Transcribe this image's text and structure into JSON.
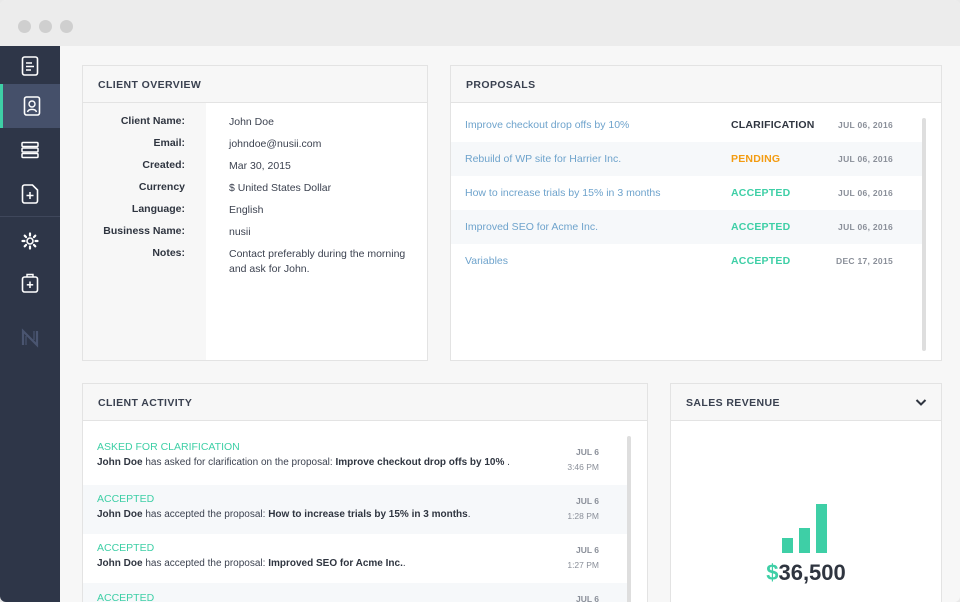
{
  "sidebar": {
    "items": [
      {
        "name": "document-icon"
      },
      {
        "name": "client-icon",
        "active": true
      },
      {
        "name": "list-icon"
      },
      {
        "name": "new-document-icon"
      },
      {
        "name": "gear-icon"
      },
      {
        "name": "add-package-icon"
      },
      {
        "name": "logo-icon"
      }
    ]
  },
  "client_overview": {
    "title": "CLIENT OVERVIEW",
    "fields": [
      {
        "label": "Client Name:",
        "value": "John Doe"
      },
      {
        "label": "Email:",
        "value": "johndoe@nusii.com"
      },
      {
        "label": "Created:",
        "value": "Mar 30, 2015"
      },
      {
        "label": "Currency",
        "value": "$ United States Dollar"
      },
      {
        "label": "Language:",
        "value": "English"
      },
      {
        "label": "Business Name:",
        "value": "nusii"
      },
      {
        "label": "Notes:",
        "value": "Contact preferably during the morning and ask for John."
      }
    ]
  },
  "proposals": {
    "title": "PROPOSALS",
    "rows": [
      {
        "name": "Improve checkout drop offs by 10%",
        "status": "CLARIFICATION",
        "status_color": "#2f3540",
        "date": "JUL 06, 2016"
      },
      {
        "name": "Rebuild of WP site for Harrier Inc.",
        "status": "PENDING",
        "status_color": "#f39c12",
        "date": "JUL 06, 2016"
      },
      {
        "name": "How to increase trials by 15% in 3 months",
        "status": "ACCEPTED",
        "status_color": "#3ecfa6",
        "date": "JUL 06, 2016"
      },
      {
        "name": "Improved SEO for Acme Inc.",
        "status": "ACCEPTED",
        "status_color": "#3ecfa6",
        "date": "JUL 06, 2016"
      },
      {
        "name": "Variables",
        "status": "ACCEPTED",
        "status_color": "#3ecfa6",
        "date": "DEC 17, 2015"
      }
    ]
  },
  "client_activity": {
    "title": "CLIENT ACTIVITY",
    "rows": [
      {
        "type": "ASKED FOR CLARIFICATION",
        "actor": "John Doe",
        "text": " has asked for clarification on the proposal: ",
        "proposal": "Improve checkout drop offs by 10%",
        "suffix": " .",
        "date": "JUL 6",
        "time": "3:46 PM"
      },
      {
        "type": "ACCEPTED",
        "actor": "John Doe",
        "text": " has accepted the proposal: ",
        "proposal": "How to increase trials by 15% in 3 months",
        "suffix": ".",
        "date": "JUL 6",
        "time": "1:28 PM"
      },
      {
        "type": "ACCEPTED",
        "actor": "John Doe",
        "text": " has accepted the proposal: ",
        "proposal": "Improved SEO for Acme Inc.",
        "suffix": ".",
        "date": "JUL 6",
        "time": "1:27 PM"
      },
      {
        "type": "ACCEPTED",
        "actor": "",
        "text": "",
        "proposal": "",
        "suffix": "",
        "date": "JUL 6",
        "time": ""
      }
    ]
  },
  "sales_revenue": {
    "title": "SALES REVENUE",
    "currency": "$",
    "amount": "36,500",
    "bars": [
      0.3,
      0.5,
      1.0
    ],
    "accent": "#3ecfa6"
  }
}
